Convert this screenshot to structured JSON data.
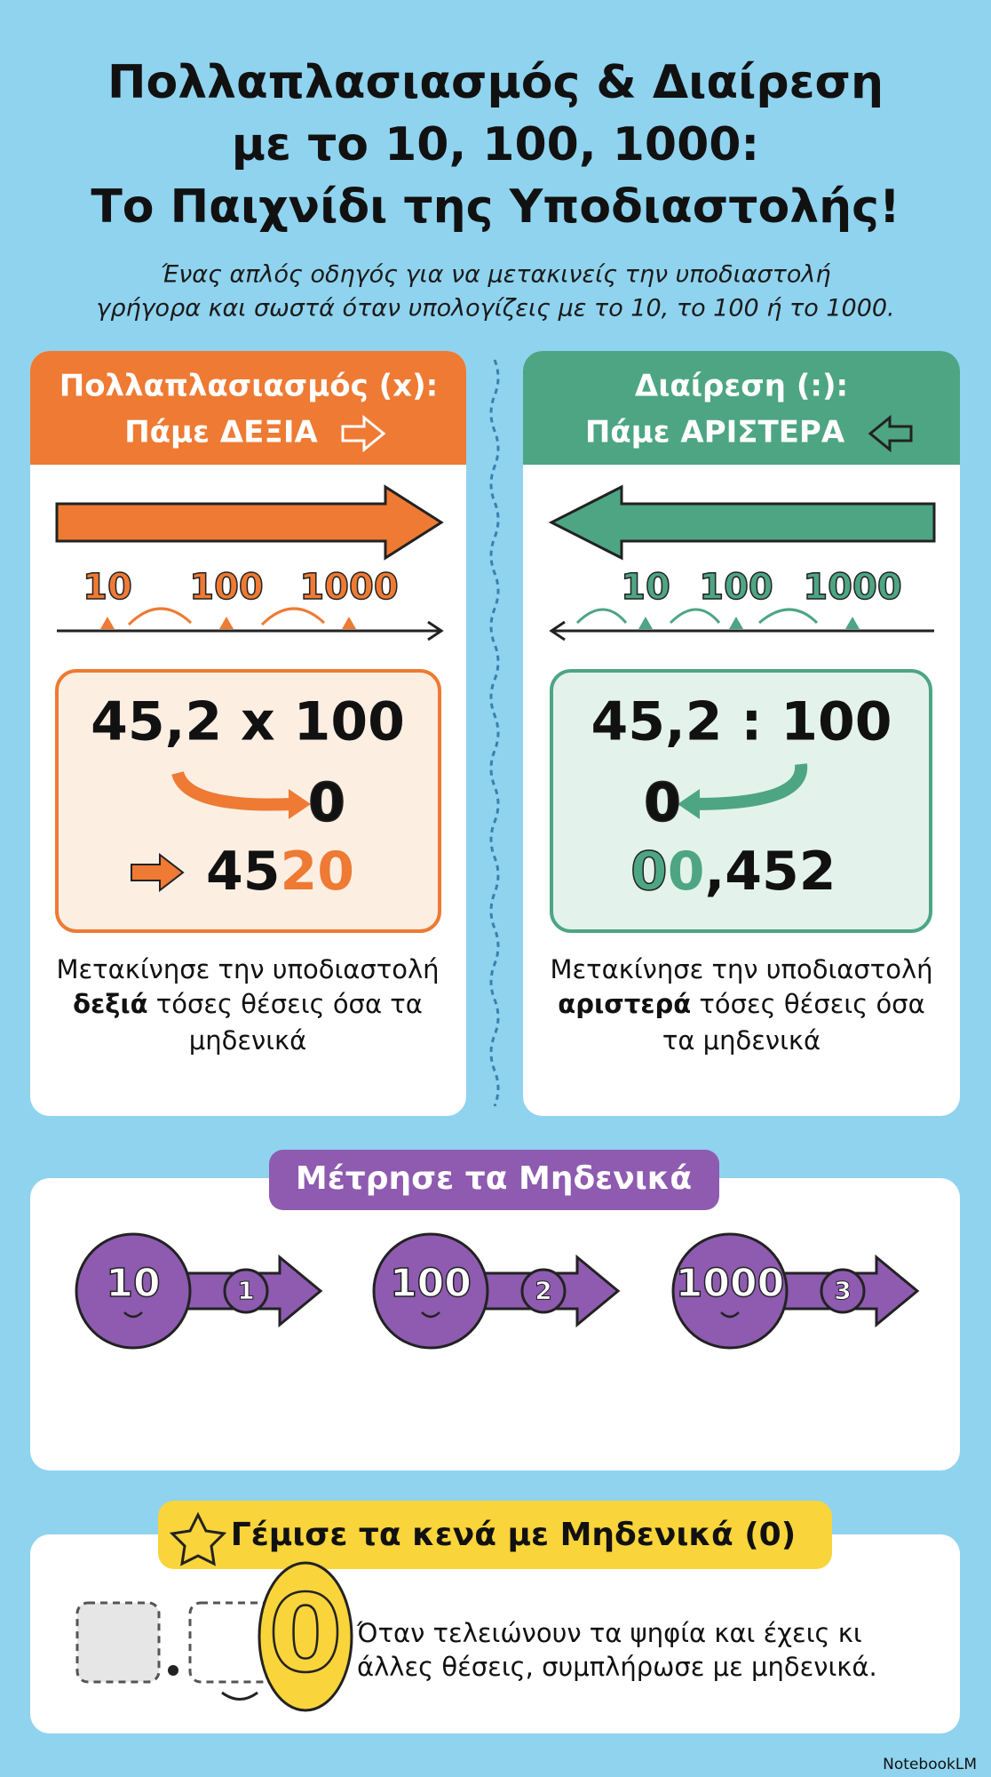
{
  "header": {
    "title": [
      "Πολλαπλασιασμός & Διαίρεση",
      "με το 10, 100, 1000:",
      "Το Παιχνίδι της Υποδιαστολής!"
    ],
    "subtitle": [
      "Ένας απλός οδηγός για να μετακινείς την υποδιαστολή",
      "γρήγορα και σωστά όταν υπολογίζεις με το 10, το 100 ή το 1000."
    ]
  },
  "multiply": {
    "heading": [
      "Πολλαπλασιασμός (x):",
      "Πάμε ΔΕΞΙΑ"
    ],
    "scale": [
      "10",
      "100",
      "1000"
    ],
    "example": "45,2 x 100",
    "moved_digit": "0",
    "result": [
      "45",
      "20"
    ],
    "description": {
      "line1": "Μετακίνησε την υποδιαστολή",
      "bold": "δεξιά",
      "line2": "τόσες θέσεις όσα τα",
      "line3": "μηδενικά"
    }
  },
  "divide": {
    "heading": [
      "Διαίρεση (:):",
      "Πάμε ΑΡΙΣΤΕΡΑ"
    ],
    "scale": [
      "10",
      "100",
      "1000"
    ],
    "example": "45,2 : 100",
    "moved_digit": "0",
    "result": [
      "0",
      "0",
      ",452"
    ],
    "description": {
      "line1": "Μετακίνησε την υποδιαστολή",
      "bold": "αριστερά",
      "line2": "τόσες θέσεις όσα",
      "line3": "τα μηδενικά"
    }
  },
  "count_zeros": {
    "title": "Μέτρησε τα Μηδενικά",
    "items": [
      {
        "number": "10",
        "zeros": "1"
      },
      {
        "number": "100",
        "zeros": "2"
      },
      {
        "number": "1000",
        "zeros": "3"
      }
    ]
  },
  "fill_zeros": {
    "title": "Γέμισε τα κενά με Μηδενικά (0)",
    "digit": "0",
    "text": [
      "Όταν τελειώνουν τα ψηφία και έχεις κι",
      "άλλες θέσεις, συμπλήρωσε με μηδενικά."
    ]
  },
  "footer": {
    "brand": "NotebookLM"
  }
}
